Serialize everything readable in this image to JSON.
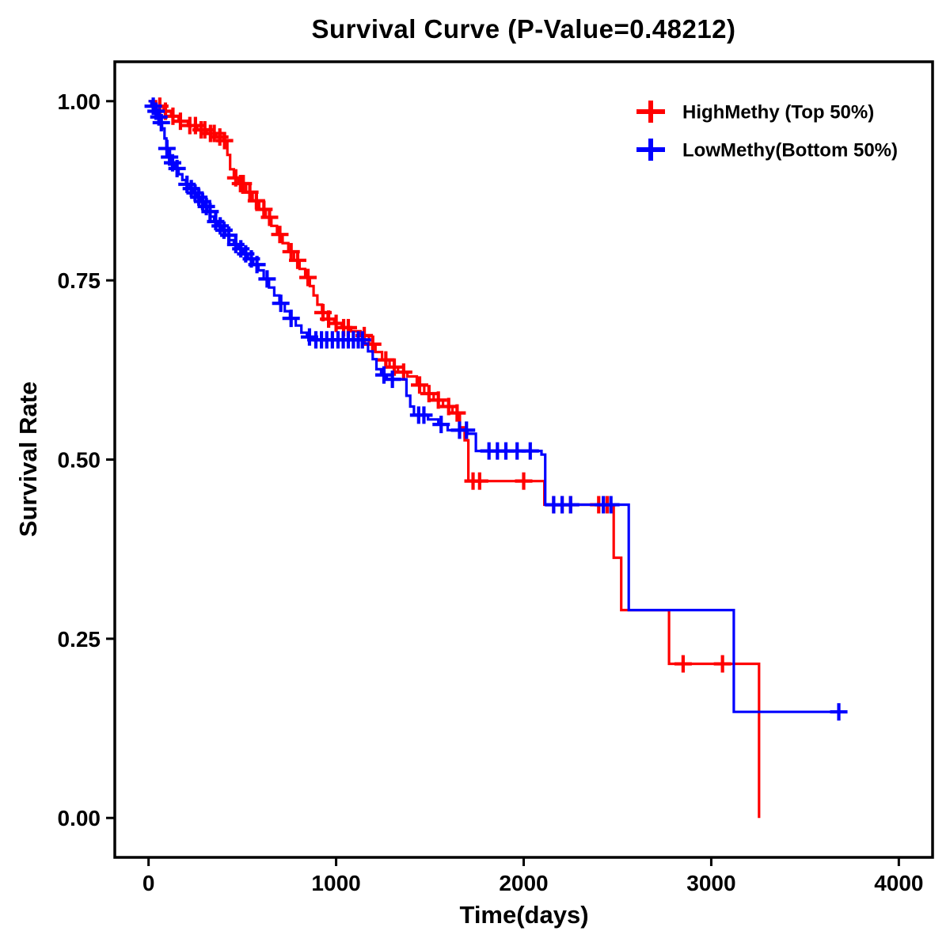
{
  "chart_data": {
    "type": "line",
    "subtype": "kaplan-meier-step",
    "title": "Survival Curve (P-Value=0.48212)",
    "p_value": "0.48212",
    "xlabel": "Time(days)",
    "ylabel": "Survival Rate",
    "xlim": [
      -180,
      4180
    ],
    "ylim": [
      -0.055,
      1.055
    ],
    "xticks": [
      0,
      1000,
      2000,
      3000,
      4000
    ],
    "yticks": [
      0,
      0.25,
      0.5,
      0.75,
      1
    ],
    "grid": false,
    "legend_position": "top-right",
    "axis_color": "#000000",
    "series": [
      {
        "name": "HighMethy (Top 50%)",
        "id": "highmethy",
        "color": "#FF0000",
        "steps": [
          [
            0,
            1.0
          ],
          [
            40,
            0.993
          ],
          [
            80,
            0.986
          ],
          [
            120,
            0.979
          ],
          [
            160,
            0.972
          ],
          [
            210,
            0.966
          ],
          [
            260,
            0.96
          ],
          [
            310,
            0.955
          ],
          [
            360,
            0.95
          ],
          [
            400,
            0.945
          ],
          [
            420,
            0.925
          ],
          [
            435,
            0.905
          ],
          [
            455,
            0.893
          ],
          [
            480,
            0.885
          ],
          [
            520,
            0.873
          ],
          [
            555,
            0.861
          ],
          [
            590,
            0.849
          ],
          [
            625,
            0.838
          ],
          [
            655,
            0.826
          ],
          [
            685,
            0.814
          ],
          [
            715,
            0.802
          ],
          [
            745,
            0.79
          ],
          [
            775,
            0.778
          ],
          [
            805,
            0.766
          ],
          [
            835,
            0.754
          ],
          [
            860,
            0.742
          ],
          [
            880,
            0.729
          ],
          [
            900,
            0.716
          ],
          [
            925,
            0.705
          ],
          [
            955,
            0.696
          ],
          [
            990,
            0.69
          ],
          [
            1030,
            0.684
          ],
          [
            1080,
            0.679
          ],
          [
            1130,
            0.673
          ],
          [
            1175,
            0.661
          ],
          [
            1210,
            0.65
          ],
          [
            1245,
            0.639
          ],
          [
            1285,
            0.629
          ],
          [
            1330,
            0.622
          ],
          [
            1380,
            0.616
          ],
          [
            1430,
            0.604
          ],
          [
            1470,
            0.592
          ],
          [
            1520,
            0.583
          ],
          [
            1570,
            0.574
          ],
          [
            1620,
            0.565
          ],
          [
            1660,
            0.545
          ],
          [
            1685,
            0.527
          ],
          [
            1705,
            0.47
          ],
          [
            2090,
            0.47
          ],
          [
            2110,
            0.437
          ],
          [
            2465,
            0.437
          ],
          [
            2480,
            0.363
          ],
          [
            2520,
            0.29
          ],
          [
            2760,
            0.29
          ],
          [
            2775,
            0.215
          ],
          [
            3240,
            0.215
          ],
          [
            3255,
            0.0
          ]
        ],
        "censor_times": [
          60,
          90,
          130,
          170,
          220,
          250,
          280,
          300,
          330,
          350,
          380,
          405,
          465,
          490,
          505,
          540,
          575,
          615,
          645,
          700,
          760,
          795,
          850,
          930,
          960,
          1000,
          1040,
          1065,
          1150,
          1195,
          1265,
          1310,
          1360,
          1445,
          1495,
          1545,
          1600,
          1645,
          1730,
          1765,
          2000,
          2160,
          2205,
          2250,
          2400,
          2445,
          2850,
          3060
        ]
      },
      {
        "name": "LowMethy(Bottom 50%)",
        "id": "lowmethy",
        "color": "#0000FF",
        "steps": [
          [
            0,
            1.0
          ],
          [
            15,
            0.993
          ],
          [
            30,
            0.986
          ],
          [
            45,
            0.978
          ],
          [
            60,
            0.97
          ],
          [
            72,
            0.962
          ],
          [
            85,
            0.948
          ],
          [
            95,
            0.934
          ],
          [
            105,
            0.922
          ],
          [
            120,
            0.914
          ],
          [
            140,
            0.906
          ],
          [
            160,
            0.898
          ],
          [
            180,
            0.89
          ],
          [
            200,
            0.884
          ],
          [
            220,
            0.878
          ],
          [
            240,
            0.872
          ],
          [
            258,
            0.866
          ],
          [
            276,
            0.86
          ],
          [
            294,
            0.853
          ],
          [
            312,
            0.846
          ],
          [
            330,
            0.839
          ],
          [
            350,
            0.832
          ],
          [
            370,
            0.826
          ],
          [
            390,
            0.82
          ],
          [
            410,
            0.813
          ],
          [
            430,
            0.806
          ],
          [
            455,
            0.8
          ],
          [
            480,
            0.794
          ],
          [
            505,
            0.787
          ],
          [
            530,
            0.78
          ],
          [
            558,
            0.772
          ],
          [
            586,
            0.764
          ],
          [
            614,
            0.752
          ],
          [
            642,
            0.74
          ],
          [
            670,
            0.729
          ],
          [
            698,
            0.718
          ],
          [
            726,
            0.707
          ],
          [
            754,
            0.697
          ],
          [
            785,
            0.687
          ],
          [
            815,
            0.677
          ],
          [
            845,
            0.671
          ],
          [
            875,
            0.667
          ],
          [
            1145,
            0.662
          ],
          [
            1170,
            0.651
          ],
          [
            1195,
            0.64
          ],
          [
            1215,
            0.626
          ],
          [
            1240,
            0.618
          ],
          [
            1270,
            0.612
          ],
          [
            1375,
            0.589
          ],
          [
            1395,
            0.574
          ],
          [
            1415,
            0.562
          ],
          [
            1490,
            0.556
          ],
          [
            1545,
            0.549
          ],
          [
            1595,
            0.541
          ],
          [
            1700,
            0.536
          ],
          [
            1745,
            0.512
          ],
          [
            2095,
            0.507
          ],
          [
            2115,
            0.437
          ],
          [
            2545,
            0.437
          ],
          [
            2560,
            0.29
          ],
          [
            3105,
            0.29
          ],
          [
            3120,
            0.148
          ],
          [
            3700,
            0.148
          ]
        ],
        "censor_times": [
          25,
          40,
          55,
          68,
          98,
          112,
          128,
          152,
          205,
          228,
          248,
          268,
          288,
          308,
          328,
          358,
          382,
          402,
          428,
          465,
          492,
          518,
          548,
          578,
          632,
          705,
          760,
          858,
          892,
          922,
          950,
          980,
          1010,
          1038,
          1065,
          1092,
          1118,
          1140,
          1255,
          1300,
          1440,
          1468,
          1560,
          1658,
          1695,
          1815,
          1860,
          1905,
          1965,
          2035,
          2160,
          2205,
          2250,
          2425,
          2465,
          3680
        ]
      }
    ]
  }
}
